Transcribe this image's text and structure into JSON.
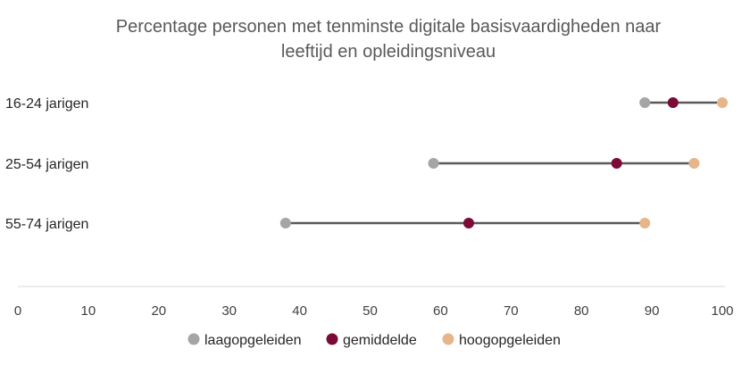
{
  "chart_data": {
    "type": "dumbbell",
    "title": "Percentage personen met tenminste digitale basisvaardigheden naar leeftijd en opleidingsniveau",
    "title_lines": [
      "Percentage personen met tenminste digitale basisvaardigheden naar",
      "leeftijd en opleidingsniveau"
    ],
    "categories": [
      "16-24 jarigen",
      "25-54 jarigen",
      "55-74 jarigen"
    ],
    "series": [
      {
        "name": "laagopgeleiden",
        "color": "#a5a5a5",
        "values": [
          89,
          59,
          38
        ]
      },
      {
        "name": "gemiddelde",
        "color": "#7b0a36",
        "values": [
          93,
          85,
          64
        ]
      },
      {
        "name": "hoogopgeleiden",
        "color": "#e6b58a",
        "values": [
          100,
          96,
          89
        ]
      }
    ],
    "connector_color": "#595959",
    "xlim": [
      0,
      100
    ],
    "xticks": [
      0,
      10,
      20,
      30,
      40,
      50,
      60,
      70,
      80,
      90,
      100
    ],
    "xlabel": "",
    "ylabel": "",
    "grid": false,
    "legend_position": "bottom"
  }
}
